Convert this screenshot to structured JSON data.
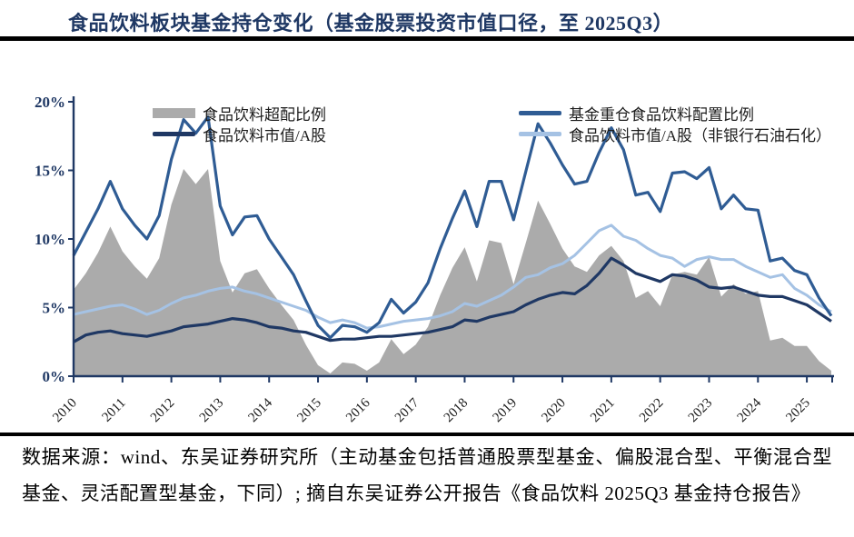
{
  "title": "食品饮料板块基金持仓变化（基金股票投资市值口径，至 2025Q3）",
  "legend": {
    "items": [
      {
        "key": "overweight-area",
        "label": "食品饮料超配比例",
        "swatch": "area",
        "color": "#ABABAB"
      },
      {
        "key": "mktcap-a-share",
        "label": "食品饮料市值/A股",
        "swatch": "line",
        "color": "#1F3864"
      },
      {
        "key": "fund-heavy-allocation",
        "label": "基金重仓食品饮料配置比例",
        "swatch": "line",
        "color": "#2F5C94"
      },
      {
        "key": "mktcap-ex-banks-oil",
        "label": "食品饮料市值/A股（非银行石油石化）",
        "swatch": "line",
        "color": "#A5C2E4"
      }
    ]
  },
  "source_note": "数据来源：wind、东吴证券研究所（主动基金包括普通股票型基金、偏股混合型、平衡混合型基金、灵活配置型基金，下同）; 摘自东吴证券公开报告《食品饮料 2025Q3 基金持仓报告》",
  "chart_data": {
    "type": "area",
    "x_unit": "quarter",
    "x_start": "2010Q1",
    "x_end": "2025Q3",
    "x_tick_labels": [
      "2010",
      "2011",
      "2012",
      "2013",
      "2014",
      "2015",
      "2016",
      "2017",
      "2018",
      "2019",
      "2020",
      "2021",
      "2022",
      "2023",
      "2024",
      "2025"
    ],
    "y_tick_labels": [
      "0%",
      "5%",
      "10%",
      "15%",
      "20%"
    ],
    "y_tick_values": [
      0,
      5,
      10,
      15,
      20
    ],
    "ylim": [
      0,
      20
    ],
    "grid": false,
    "legend_position": "top",
    "axis_color": "#1F3864",
    "tick_label_color": "#1a1a1a",
    "series": [
      {
        "key": "overweight-area",
        "name": "食品饮料超配比例",
        "type": "area",
        "color": "#ABABAB",
        "values": [
          6.3,
          7.5,
          9.0,
          10.9,
          9.1,
          8.0,
          7.1,
          8.6,
          12.5,
          15.1,
          14.0,
          15.1,
          8.4,
          6.1,
          7.5,
          7.8,
          6.4,
          5.2,
          4.1,
          2.3,
          0.8,
          0.2,
          1.0,
          0.9,
          0.4,
          1.0,
          2.7,
          1.6,
          2.3,
          3.6,
          5.9,
          7.9,
          9.4,
          6.9,
          9.9,
          9.7,
          6.7,
          9.7,
          12.8,
          11.1,
          9.3,
          8.0,
          7.6,
          8.8,
          9.5,
          8.4,
          5.7,
          6.2,
          5.1,
          7.4,
          7.6,
          7.4,
          8.7,
          5.8,
          6.7,
          6.0,
          6.2,
          2.6,
          2.8,
          2.2,
          2.2,
          1.1,
          0.4
        ]
      },
      {
        "key": "mktcap-ex-banks-oil",
        "name": "食品饮料市值/A股（非银行石油石化）",
        "type": "line",
        "color": "#A5C2E4",
        "width": 3,
        "values": [
          4.5,
          4.7,
          4.9,
          5.1,
          5.2,
          4.9,
          4.5,
          4.8,
          5.3,
          5.7,
          5.9,
          6.2,
          6.4,
          6.5,
          6.2,
          6.0,
          5.7,
          5.4,
          5.1,
          4.8,
          4.3,
          3.9,
          4.1,
          3.9,
          3.5,
          3.6,
          3.8,
          4.0,
          4.1,
          4.2,
          4.4,
          4.7,
          5.3,
          5.1,
          5.5,
          5.9,
          6.5,
          7.2,
          7.4,
          7.9,
          8.2,
          8.8,
          9.7,
          10.6,
          11.0,
          10.2,
          9.9,
          9.3,
          8.8,
          8.6,
          8.0,
          8.5,
          8.7,
          8.5,
          8.5,
          8.0,
          7.6,
          7.2,
          7.4,
          6.4,
          5.9,
          5.2,
          4.7
        ]
      },
      {
        "key": "mktcap-a-share",
        "name": "食品饮料市值/A股",
        "type": "line",
        "color": "#1F3864",
        "width": 3.2,
        "values": [
          2.5,
          3.0,
          3.2,
          3.3,
          3.1,
          3.0,
          2.9,
          3.1,
          3.3,
          3.6,
          3.7,
          3.8,
          4.0,
          4.2,
          4.1,
          3.9,
          3.6,
          3.5,
          3.3,
          3.2,
          2.9,
          2.6,
          2.7,
          2.7,
          2.8,
          2.9,
          2.9,
          3.0,
          3.1,
          3.2,
          3.4,
          3.6,
          4.1,
          4.0,
          4.3,
          4.5,
          4.7,
          5.2,
          5.6,
          5.9,
          6.1,
          6.0,
          6.6,
          7.5,
          8.6,
          8.1,
          7.5,
          7.2,
          6.9,
          7.4,
          7.3,
          7.0,
          6.5,
          6.4,
          6.5,
          6.2,
          5.9,
          5.8,
          5.8,
          5.5,
          5.2,
          4.6,
          4.0
        ]
      },
      {
        "key": "fund-heavy-allocation",
        "name": "基金重仓食品饮料配置比例",
        "type": "line",
        "color": "#2F5C94",
        "width": 3.2,
        "values": [
          8.8,
          10.5,
          12.2,
          14.2,
          12.2,
          11.0,
          10.0,
          11.7,
          15.8,
          18.7,
          17.7,
          18.9,
          12.4,
          10.3,
          11.6,
          11.7,
          10.0,
          8.7,
          7.4,
          5.5,
          3.7,
          2.8,
          3.7,
          3.6,
          3.2,
          3.9,
          5.6,
          4.6,
          5.4,
          6.8,
          9.3,
          11.5,
          13.5,
          10.9,
          14.2,
          14.2,
          11.4,
          14.9,
          18.4,
          17.0,
          15.4,
          14.0,
          14.2,
          16.3,
          18.1,
          16.5,
          13.2,
          13.4,
          12.0,
          14.8,
          14.9,
          14.4,
          15.2,
          12.2,
          13.2,
          12.2,
          12.1,
          8.4,
          8.6,
          7.7,
          7.4,
          5.7,
          4.4
        ]
      }
    ]
  }
}
